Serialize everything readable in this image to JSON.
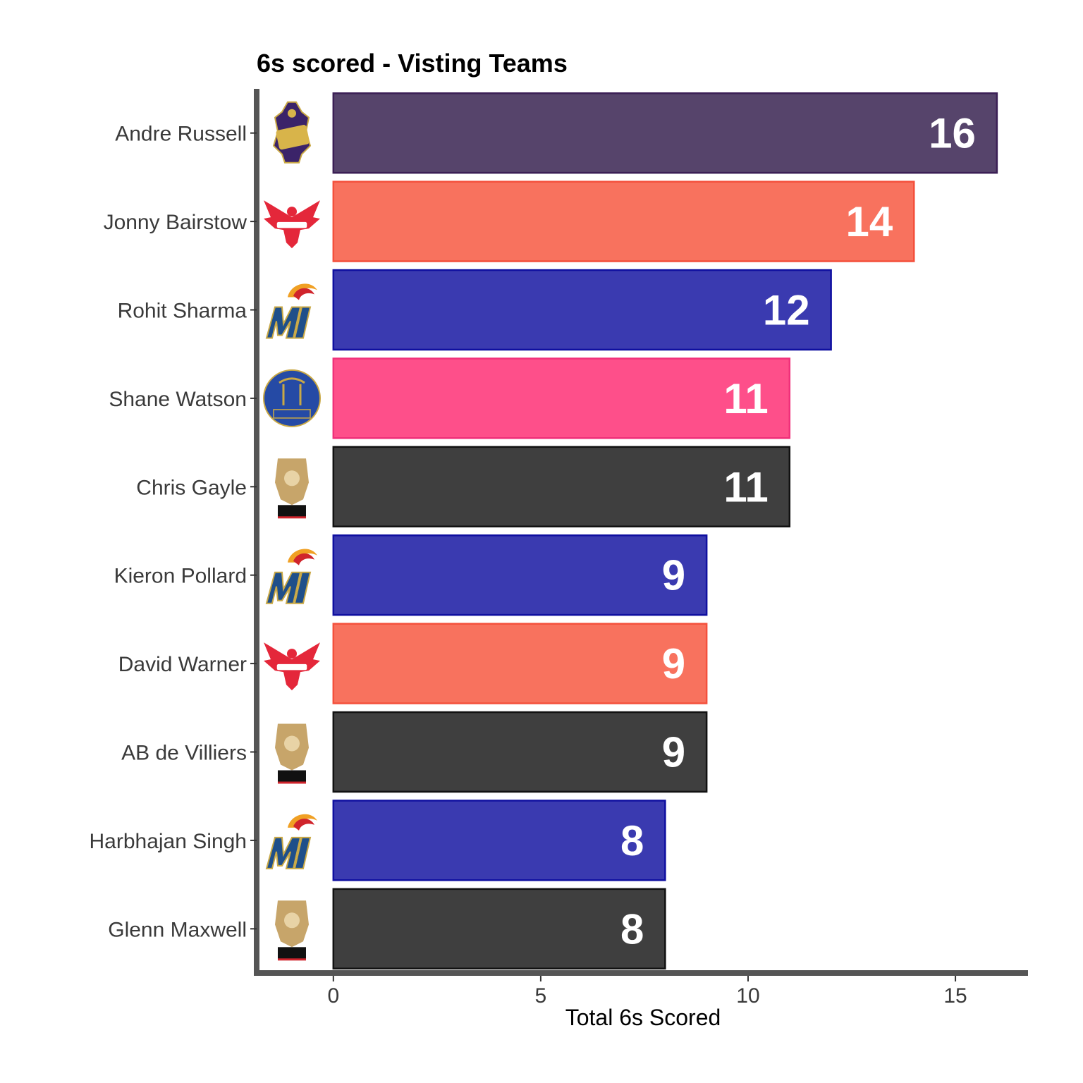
{
  "chart_data": {
    "type": "bar",
    "orientation": "horizontal",
    "title": "6s scored - Visting Teams",
    "xlabel": "Total 6s Scored",
    "ylabel": "",
    "xlim": [
      -1.85,
      16.75
    ],
    "xticks": [
      0,
      5,
      10,
      15
    ],
    "grid": false,
    "legend": "none",
    "categories": [
      "Andre Russell",
      "Jonny Bairstow",
      "Rohit Sharma",
      "Shane Watson",
      "Chris Gayle",
      "Kieron Pollard",
      "David Warner",
      "AB de Villiers",
      "Harbhajan Singh",
      "Glenn Maxwell"
    ],
    "values": [
      16,
      14,
      12,
      11,
      11,
      9,
      9,
      9,
      8,
      8
    ],
    "teams": [
      "kkr",
      "srh",
      "mi",
      "rr",
      "rcb",
      "mi",
      "srh",
      "rcb",
      "mi",
      "rcb"
    ],
    "data_labels": [
      "16",
      "14",
      "12",
      "11",
      "11",
      "9",
      "9",
      "9",
      "8",
      "8"
    ]
  },
  "team_styles": {
    "kkr": {
      "fill": "#56446b",
      "stroke": "#3b1f55",
      "icon": "kkr-logo-icon"
    },
    "srh": {
      "fill": "#f8725e",
      "stroke": "#f4503c",
      "icon": "srh-logo-icon"
    },
    "mi": {
      "fill": "#3a3ab0",
      "stroke": "#0f0fa0",
      "icon": "mi-logo-icon"
    },
    "rr": {
      "fill": "#fe4f8a",
      "stroke": "#f0307a",
      "icon": "rr-logo-icon"
    },
    "rcb": {
      "fill": "#3f3f3f",
      "stroke": "#111111",
      "icon": "rcb-logo-icon"
    }
  },
  "axis_color": "#555555"
}
